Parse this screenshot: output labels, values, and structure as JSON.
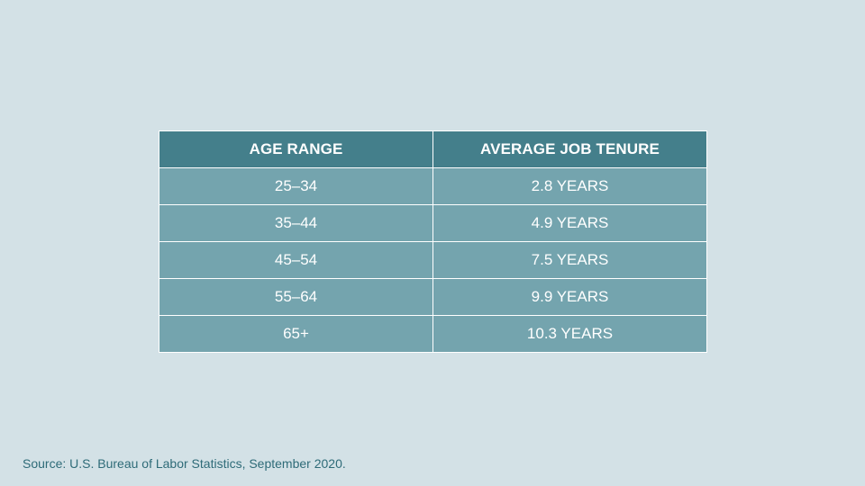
{
  "colors": {
    "background": "#d3e1e6",
    "header_fill": "#447f8b",
    "row_fill": "#74a4ae",
    "text_light": "#ffffff",
    "source_text": "#2e6b78"
  },
  "chart_data": {
    "type": "table",
    "columns": [
      "AGE RANGE",
      "AVERAGE JOB TENURE"
    ],
    "rows": [
      [
        "25–34",
        "2.8 YEARS"
      ],
      [
        "35–44",
        "4.9 YEARS"
      ],
      [
        "45–54",
        "7.5 YEARS"
      ],
      [
        "55–64",
        "9.9 YEARS"
      ],
      [
        "65+",
        "10.3 YEARS"
      ]
    ],
    "values": [
      2.8,
      4.9,
      7.5,
      9.9,
      10.3
    ],
    "unit": "YEARS"
  },
  "source": "Source: U.S. Bureau of Labor Statistics, September 2020."
}
